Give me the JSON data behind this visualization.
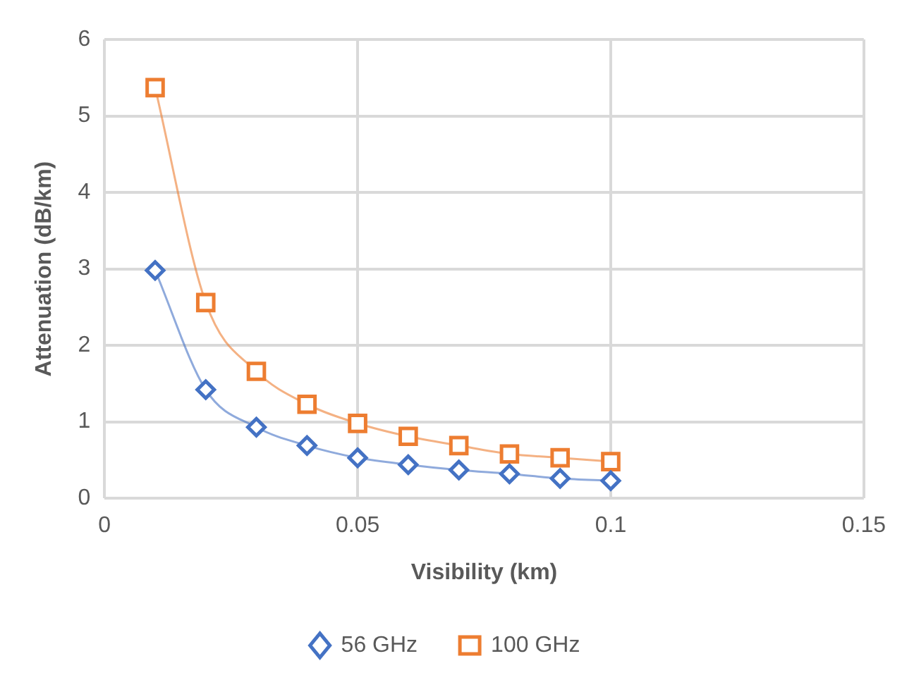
{
  "chart_data": {
    "type": "line",
    "xlabel": "Visibility (km)",
    "ylabel": "Attenuation (dB/km)",
    "x": [
      0.01,
      0.02,
      0.03,
      0.04,
      0.05,
      0.06,
      0.07,
      0.08,
      0.09,
      0.1
    ],
    "series": [
      {
        "name": "56 GHz",
        "color": "#4472c4",
        "marker": "diamond",
        "values": [
          2.98,
          1.42,
          0.93,
          0.69,
          0.53,
          0.44,
          0.37,
          0.32,
          0.26,
          0.23
        ]
      },
      {
        "name": "100 GHz",
        "color": "#ed7d31",
        "marker": "square",
        "values": [
          5.37,
          2.56,
          1.66,
          1.23,
          0.98,
          0.81,
          0.69,
          0.58,
          0.53,
          0.48
        ]
      }
    ],
    "xlim": [
      0,
      0.15
    ],
    "xticks": [
      0,
      0.05,
      0.1,
      0.15
    ],
    "ylim": [
      0,
      6
    ],
    "yticks": [
      0,
      1,
      2,
      3,
      4,
      5,
      6
    ],
    "grid": true,
    "legend": "bottom"
  }
}
